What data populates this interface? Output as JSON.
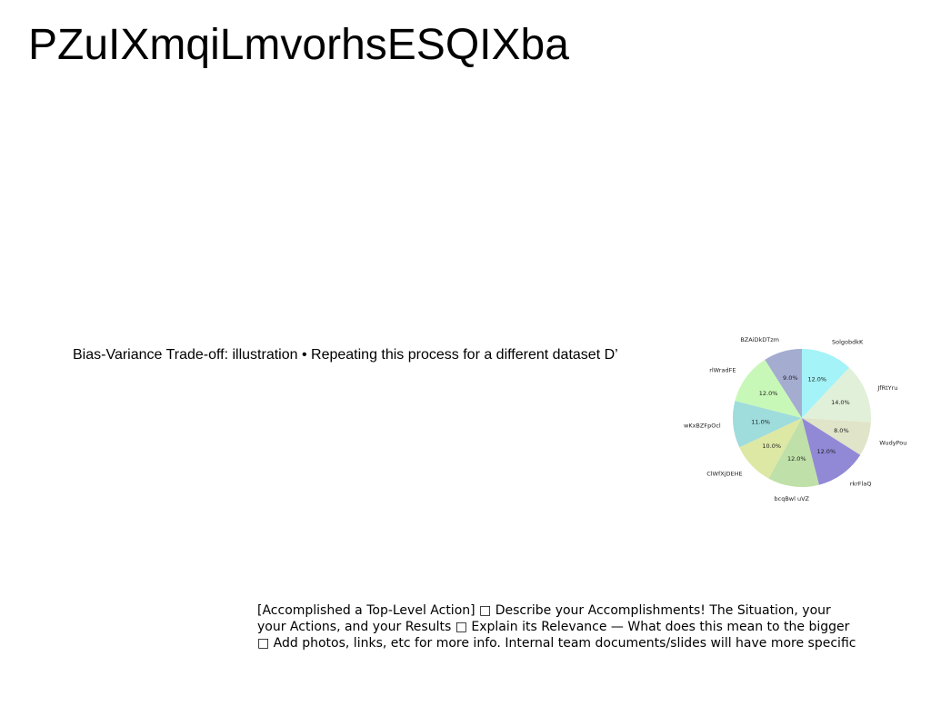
{
  "title": "PZuIXmqiLmvorhsESQIXba",
  "subtitle": "Bias-Variance Trade-off: illustration • Repeating this process for a different dataset D’",
  "body_lines": [
    "[Accomplished a Top-Level Action] □ Describe your Accomplishments! The Situation, your",
    "your Actions, and your Results □ Explain its Relevance — What does this mean to the bigger",
    "□ Add photos, links, etc for more info. Internal team documents/slides will have more specific"
  ],
  "chart_data": {
    "type": "pie",
    "categories": [
      "SolgobdkK",
      "JfRtYru",
      "WudyPou",
      "rkrFlaQ",
      "bcqBwl uVZ",
      "ClWfXjDEHE",
      "wKxBZFpOcl",
      "rlWradFE",
      "BZAiDkDTzm"
    ],
    "values": [
      12.0,
      14.0,
      8.0,
      12.0,
      12.0,
      10.0,
      11.0,
      12.0,
      9.0
    ],
    "labels": [
      "12.0%",
      "14.0%",
      "8.0%",
      "12.0%",
      "12.0%",
      "10.0%",
      "11.0%",
      "12.0%",
      "9.0%"
    ],
    "colors": [
      "#a3f3f8",
      "#e1f0d8",
      "#e0e4c8",
      "#9188d6",
      "#bfe0a8",
      "#dde8a4",
      "#9fdcdc",
      "#c8f8b8",
      "#a4acd0"
    ],
    "start_angle_deg": 90,
    "direction": "clockwise"
  }
}
